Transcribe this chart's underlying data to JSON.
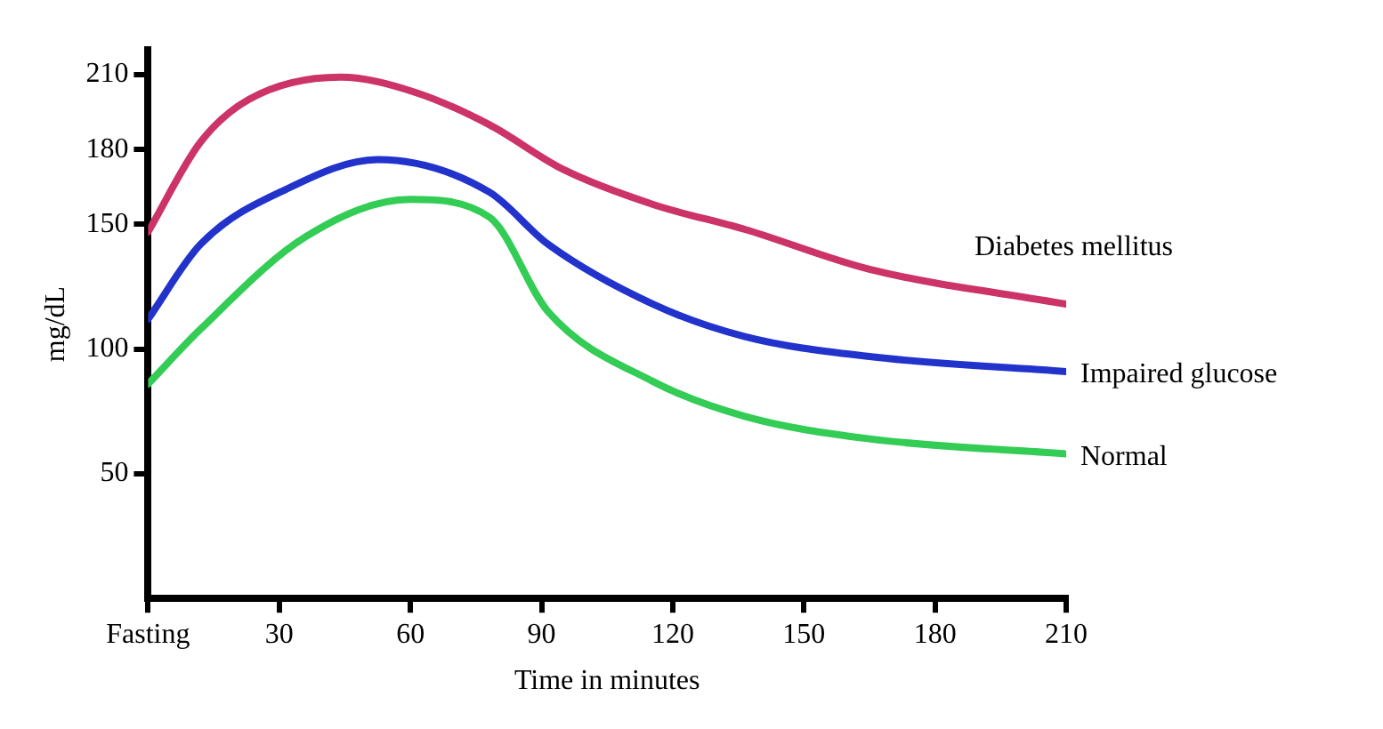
{
  "chart_data": {
    "type": "line",
    "xlabel": "Time in minutes",
    "ylabel": "mg/dL",
    "xlim": [
      0,
      210
    ],
    "xticks": [
      {
        "value": 0,
        "label": "Fasting"
      },
      30,
      60,
      90,
      120,
      150,
      180,
      210
    ],
    "ylim": [
      0,
      220
    ],
    "yticks": [
      50,
      100,
      150,
      180,
      210
    ],
    "grid": false,
    "legend": false,
    "marker": "none",
    "line_style": "solid",
    "series": [
      {
        "name": "Diabetes mellitus",
        "color": "#cc3366",
        "x": [
          0,
          12,
          23,
          44,
          61,
          78,
          95,
          115.5,
          136.5,
          165,
          210
        ],
        "values": [
          147,
          183,
          200,
          209,
          203,
          190,
          172,
          158,
          148,
          132,
          118
        ]
      },
      {
        "name": "Impaired glucose",
        "color": "#2233cc",
        "x": [
          0,
          12,
          31.5,
          52.5,
          78,
          91.5,
          115.5,
          136.5,
          165,
          210
        ],
        "values": [
          112,
          142,
          164,
          176,
          163,
          142,
          118,
          105,
          97,
          91
        ]
      },
      {
        "name": "Normal",
        "color": "#33cc55",
        "x": [
          0,
          12,
          36,
          60,
          78,
          91.5,
          115.5,
          136.5,
          165,
          210
        ],
        "values": [
          86,
          108,
          145,
          160,
          153,
          115,
          87,
          73,
          64,
          58
        ]
      }
    ]
  }
}
